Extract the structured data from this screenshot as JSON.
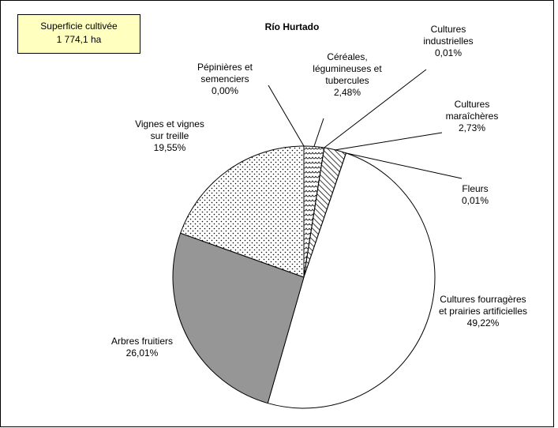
{
  "chart_data": {
    "type": "pie",
    "title": "Río Hurtado",
    "annotation": [
      "Superficie cultivée",
      "1 774,1 ha"
    ],
    "categories": [
      "Céréales, légumineuses et tubercules",
      "Cultures industrielles",
      "Cultures maraîchères",
      "Fleurs",
      "Cultures fourragères et prairies artificielles",
      "Arbres fruitiers",
      "Vignes et vignes sur treille",
      "Pépinières et semenciers"
    ],
    "values": [
      2.48,
      0.01,
      2.73,
      0.01,
      49.22,
      26.01,
      19.55,
      0.0
    ],
    "value_labels": [
      "2,48%",
      "0,01%",
      "2,73%",
      "0,01%",
      "49,22%",
      "26,01%",
      "19,55%",
      "0,00%"
    ],
    "colors": [
      "#ffffff",
      "#ffffff",
      "#ffffff",
      "#ffffff",
      "#ffffff",
      "#969696",
      "#ffffff",
      "#ffffff"
    ],
    "patterns": [
      "waves",
      null,
      "diagonal",
      null,
      null,
      null,
      "dots",
      null
    ]
  }
}
